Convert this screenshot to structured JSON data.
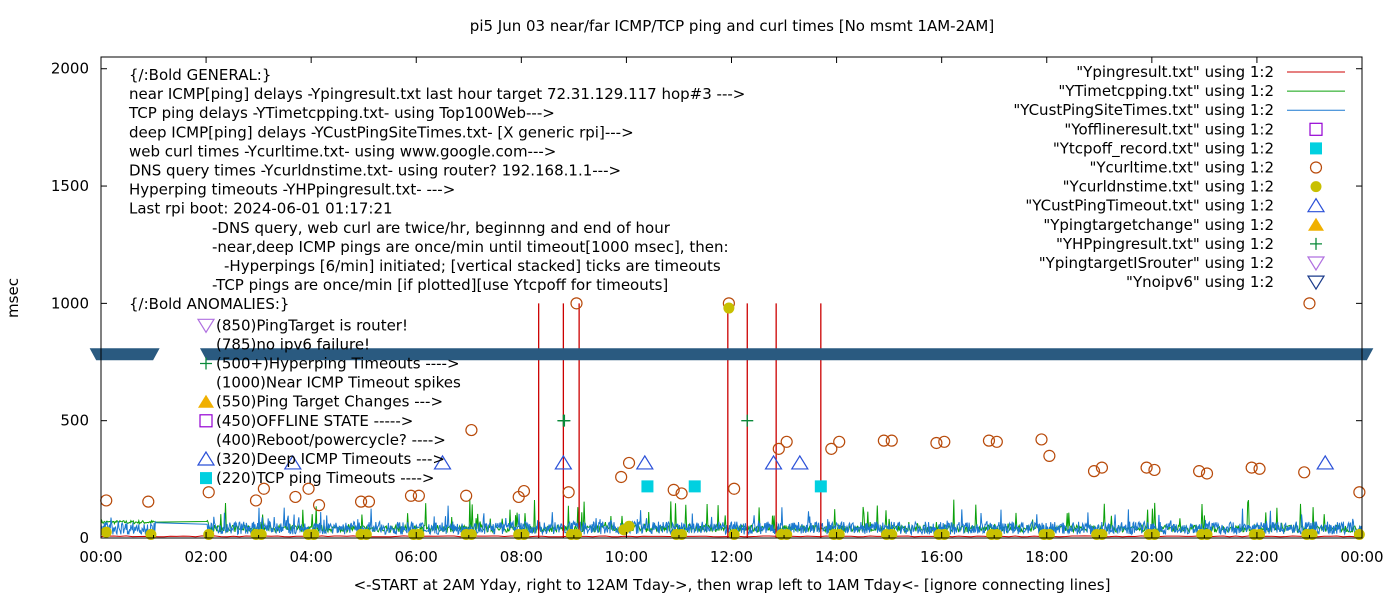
{
  "chart_data": {
    "type": "line",
    "title": "pi5 Jun 03  near/far ICMP/TCP ping and curl times [No msmt 1AM-2AM]",
    "xlabel": "<-START at 2AM Yday, right to 12AM Tday->, then wrap left to 1AM Tday<- [ignore connecting lines]",
    "ylabel": "msec",
    "xlim": [
      0,
      24
    ],
    "ylim": [
      0,
      2050
    ],
    "x_ticks": [
      {
        "v": 0,
        "label": "00:00"
      },
      {
        "v": 2,
        "label": "02:00"
      },
      {
        "v": 4,
        "label": "04:00"
      },
      {
        "v": 6,
        "label": "06:00"
      },
      {
        "v": 8,
        "label": "08:00"
      },
      {
        "v": 10,
        "label": "10:00"
      },
      {
        "v": 12,
        "label": "12:00"
      },
      {
        "v": 14,
        "label": "14:00"
      },
      {
        "v": 16,
        "label": "16:00"
      },
      {
        "v": 18,
        "label": "18:00"
      },
      {
        "v": 20,
        "label": "20:00"
      },
      {
        "v": 22,
        "label": "22:00"
      },
      {
        "v": 24,
        "label": "00:00"
      }
    ],
    "y_ticks": [
      {
        "v": 0,
        "label": "0"
      },
      {
        "v": 500,
        "label": "500"
      },
      {
        "v": 1000,
        "label": "1000"
      },
      {
        "v": 1500,
        "label": "1500"
      },
      {
        "v": 2000,
        "label": "2000"
      }
    ],
    "grid": false,
    "legend_position": "top-right",
    "legend": [
      {
        "label": "\"Ypingresult.txt\" using 1:2",
        "kind": "line",
        "color": "#cc0000"
      },
      {
        "label": "\"YTimetcpping.txt\" using 1:2",
        "kind": "line",
        "color": "#0aa00a"
      },
      {
        "label": "\"YCustPingSiteTimes.txt\" using 1:2",
        "kind": "line",
        "color": "#1a78d0"
      },
      {
        "label": "\"Yofflineresult.txt\" using 1:2",
        "kind": "open-square",
        "color": "#9400d3"
      },
      {
        "label": "\"Ytcpoff_record.txt\" using 1:2",
        "kind": "filled-square",
        "color": "#00d0e0"
      },
      {
        "label": "\"Ycurltime.txt\" using 1:2",
        "kind": "open-circle",
        "color": "#b84a0a"
      },
      {
        "label": "\"Ycurldnstime.txt\" using 1:2",
        "kind": "filled-circle",
        "color": "#c8c000"
      },
      {
        "label": "\"YCustPingTimeout.txt\" using 1:2",
        "kind": "open-triangle-up",
        "color": "#2b50d8"
      },
      {
        "label": "\"Ypingtargetchange\" using 1:2",
        "kind": "filled-triangle-up",
        "color": "#f0b000"
      },
      {
        "label": "\"YHPpingresult.txt\" using 1:2",
        "kind": "plus",
        "color": "#0a8a3a"
      },
      {
        "label": "\"YpingtargetISrouter\" using 1:2",
        "kind": "open-triangle-down",
        "color": "#b070e0"
      },
      {
        "label": "\"Ynoipv6\" using 1:2",
        "kind": "open-triangle-down",
        "color": "#1a3a8a"
      }
    ],
    "annotation_lines": [
      "{/:Bold GENERAL:}",
      "near ICMP[ping] delays -Ypingresult.txt last hour target 72.31.129.117 hop#3 --->",
      "TCP ping delays -YTimetcpping.txt- using Top100Web--->",
      "deep ICMP[ping] delays -YCustPingSiteTimes.txt- [X generic rpi]--->",
      "web curl times -Ycurltime.txt- using www.google.com--->",
      "DNS query times -Ycurldnstime.txt- using router? 192.168.1.1--->",
      "Hyperping timeouts -YHPpingresult.txt- --->",
      "Last rpi boot: 2024-06-01 01:17:21",
      "-DNS query, web curl are twice/hr, beginnng and end of hour",
      "-near,deep ICMP pings are once/min until timeout[1000 msec], then:",
      "-Hyperpings [6/min] initiated; [vertical stacked] ticks are timeouts",
      "-TCP pings are once/min [if plotted][use Ytcpoff for timeouts]",
      "{/:Bold ANOMALIES:}",
      "(850)PingTarget is router!",
      "(785)no ipv6 failure!",
      "(500+)Hyperping Timeouts ---->",
      "(1000)Near ICMP Timeout spikes",
      "(550)Ping Target Changes --->",
      "(450)OFFLINE STATE ----->",
      "(400)Reboot/powercycle? ---->",
      "(320)Deep ICMP Timeouts --->",
      "(220)TCP ping Timeouts ---->"
    ],
    "noipv6_band": {
      "y": 785,
      "segments": [
        [
          -0.2,
          1.1
        ],
        [
          1.9,
          24.2
        ]
      ]
    },
    "near_icmp_timeout_spikes_x": [
      8.33,
      8.8,
      9.1,
      11.93,
      12.3,
      12.85,
      13.7
    ],
    "hyperping_timeouts": [
      [
        8.8,
        500
      ],
      [
        8.82,
        500
      ],
      [
        12.3,
        500
      ]
    ],
    "tcp_timeouts": [
      [
        10.4,
        220
      ],
      [
        11.3,
        220
      ],
      [
        13.7,
        220
      ]
    ],
    "deep_icmp_timeouts": [
      [
        3.65,
        320
      ],
      [
        6.5,
        320
      ],
      [
        8.8,
        320
      ],
      [
        10.35,
        320
      ],
      [
        12.8,
        320
      ],
      [
        13.3,
        320
      ],
      [
        23.3,
        320
      ]
    ],
    "curl_times": [
      [
        0.1,
        160
      ],
      [
        0.9,
        155
      ],
      [
        2.05,
        195
      ],
      [
        2.95,
        160
      ],
      [
        3.1,
        210
      ],
      [
        3.7,
        175
      ],
      [
        3.95,
        210
      ],
      [
        4.15,
        140
      ],
      [
        4.95,
        155
      ],
      [
        5.1,
        155
      ],
      [
        5.9,
        180
      ],
      [
        6.05,
        180
      ],
      [
        6.95,
        180
      ],
      [
        7.05,
        460
      ],
      [
        7.95,
        175
      ],
      [
        8.05,
        200
      ],
      [
        8.9,
        195
      ],
      [
        9.05,
        1000
      ],
      [
        9.9,
        260
      ],
      [
        10.05,
        320
      ],
      [
        10.9,
        205
      ],
      [
        11.05,
        190
      ],
      [
        11.95,
        1000
      ],
      [
        12.05,
        210
      ],
      [
        12.9,
        380
      ],
      [
        13.05,
        410
      ],
      [
        13.9,
        380
      ],
      [
        14.05,
        410
      ],
      [
        14.9,
        415
      ],
      [
        15.05,
        415
      ],
      [
        15.9,
        405
      ],
      [
        16.05,
        410
      ],
      [
        16.9,
        415
      ],
      [
        17.05,
        410
      ],
      [
        17.9,
        420
      ],
      [
        18.05,
        350
      ],
      [
        18.9,
        285
      ],
      [
        19.05,
        300
      ],
      [
        19.9,
        300
      ],
      [
        20.05,
        290
      ],
      [
        20.9,
        285
      ],
      [
        21.05,
        275
      ],
      [
        21.9,
        300
      ],
      [
        22.05,
        295
      ],
      [
        22.9,
        280
      ],
      [
        23.0,
        1000
      ],
      [
        23.95,
        195
      ]
    ],
    "dns_times": [
      [
        0.1,
        25
      ],
      [
        0.95,
        15
      ],
      [
        2.05,
        15
      ],
      [
        2.95,
        15
      ],
      [
        3.05,
        15
      ],
      [
        3.95,
        15
      ],
      [
        4.05,
        15
      ],
      [
        4.95,
        15
      ],
      [
        5.05,
        15
      ],
      [
        5.95,
        15
      ],
      [
        6.05,
        15
      ],
      [
        6.95,
        15
      ],
      [
        7.05,
        15
      ],
      [
        7.95,
        15
      ],
      [
        8.05,
        15
      ],
      [
        8.95,
        15
      ],
      [
        9.05,
        15
      ],
      [
        9.95,
        35
      ],
      [
        10.05,
        50
      ],
      [
        10.95,
        15
      ],
      [
        11.05,
        15
      ],
      [
        11.95,
        980
      ],
      [
        12.05,
        15
      ],
      [
        12.95,
        15
      ],
      [
        13.05,
        15
      ],
      [
        13.95,
        15
      ],
      [
        14.05,
        15
      ],
      [
        14.95,
        15
      ],
      [
        15.05,
        15
      ],
      [
        15.95,
        15
      ],
      [
        16.05,
        15
      ],
      [
        16.95,
        15
      ],
      [
        17.05,
        15
      ],
      [
        17.95,
        15
      ],
      [
        18.05,
        15
      ],
      [
        18.95,
        15
      ],
      [
        19.05,
        15
      ],
      [
        19.95,
        15
      ],
      [
        20.05,
        15
      ],
      [
        20.95,
        15
      ],
      [
        21.05,
        15
      ],
      [
        21.95,
        15
      ],
      [
        22.05,
        15
      ],
      [
        22.95,
        15
      ],
      [
        23.05,
        15
      ],
      [
        23.95,
        15
      ]
    ]
  },
  "colors": {
    "near_icmp": "#cc0000",
    "tcp_ping": "#0aa00a",
    "deep_icmp": "#1a78d0",
    "band": "#2a5a80"
  }
}
